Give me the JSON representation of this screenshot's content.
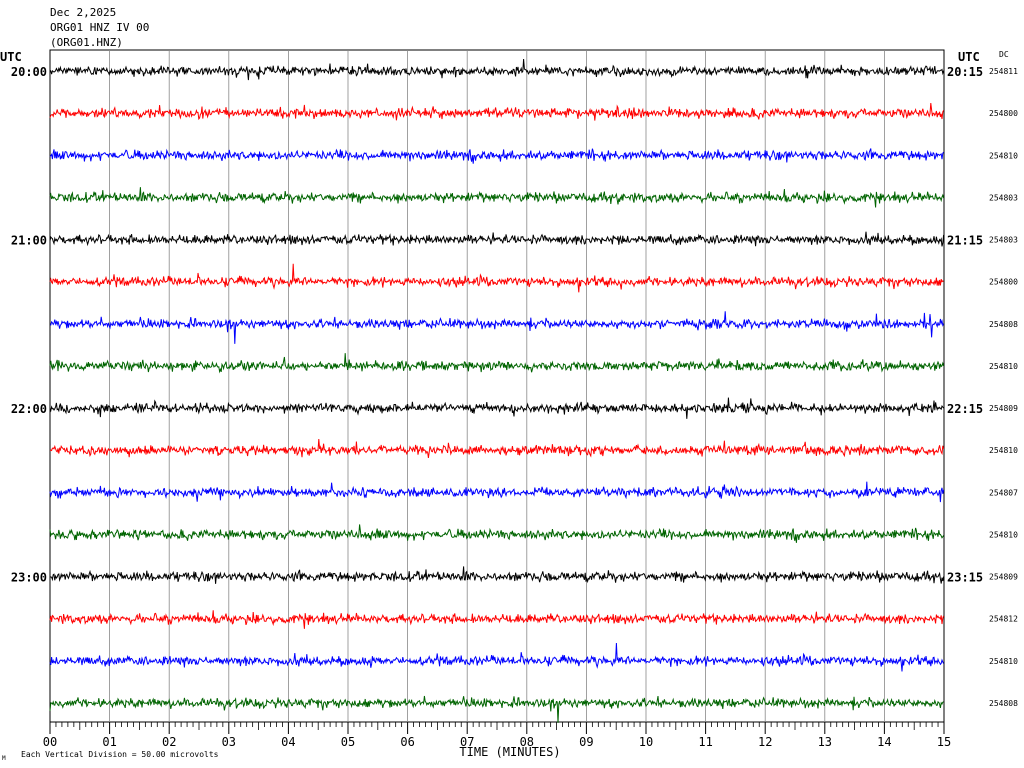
{
  "header": {
    "date": "Dec 2,2025",
    "station": "ORG01 HNZ IV 00",
    "channel": "(ORG01.HNZ)"
  },
  "axis": {
    "left_tz": "UTC",
    "right_tz": "UTC",
    "dc_label": "DC",
    "xlabel": "TIME (MINUTES)",
    "footer": "Each Vertical Division =    50.00 microvolts",
    "corner_mark": "M"
  },
  "chart_data": {
    "type": "line",
    "xlim": [
      0,
      15
    ],
    "x_ticks": [
      "00",
      "01",
      "02",
      "03",
      "04",
      "05",
      "06",
      "07",
      "08",
      "09",
      "10",
      "11",
      "12",
      "13",
      "14",
      "15"
    ],
    "trace_colors": [
      "#000000",
      "#ff0000",
      "#0000ff",
      "#006400"
    ],
    "traces": [
      {
        "start": "20:00",
        "end": "20:15",
        "dc": "254811"
      },
      {
        "start": "",
        "end": "",
        "dc": "254800"
      },
      {
        "start": "",
        "end": "",
        "dc": "254810"
      },
      {
        "start": "",
        "end": "",
        "dc": "254803"
      },
      {
        "start": "21:00",
        "end": "21:15",
        "dc": "254803"
      },
      {
        "start": "",
        "end": "",
        "dc": "254800"
      },
      {
        "start": "",
        "end": "",
        "dc": "254808"
      },
      {
        "start": "",
        "end": "",
        "dc": "254810"
      },
      {
        "start": "22:00",
        "end": "22:15",
        "dc": "254809"
      },
      {
        "start": "",
        "end": "",
        "dc": "254810"
      },
      {
        "start": "",
        "end": "",
        "dc": "254807"
      },
      {
        "start": "",
        "end": "",
        "dc": "254810"
      },
      {
        "start": "23:00",
        "end": "23:15",
        "dc": "254809"
      },
      {
        "start": "",
        "end": "",
        "dc": "254812"
      },
      {
        "start": "",
        "end": "",
        "dc": "254810"
      },
      {
        "start": "",
        "end": "",
        "dc": "254808"
      }
    ]
  }
}
